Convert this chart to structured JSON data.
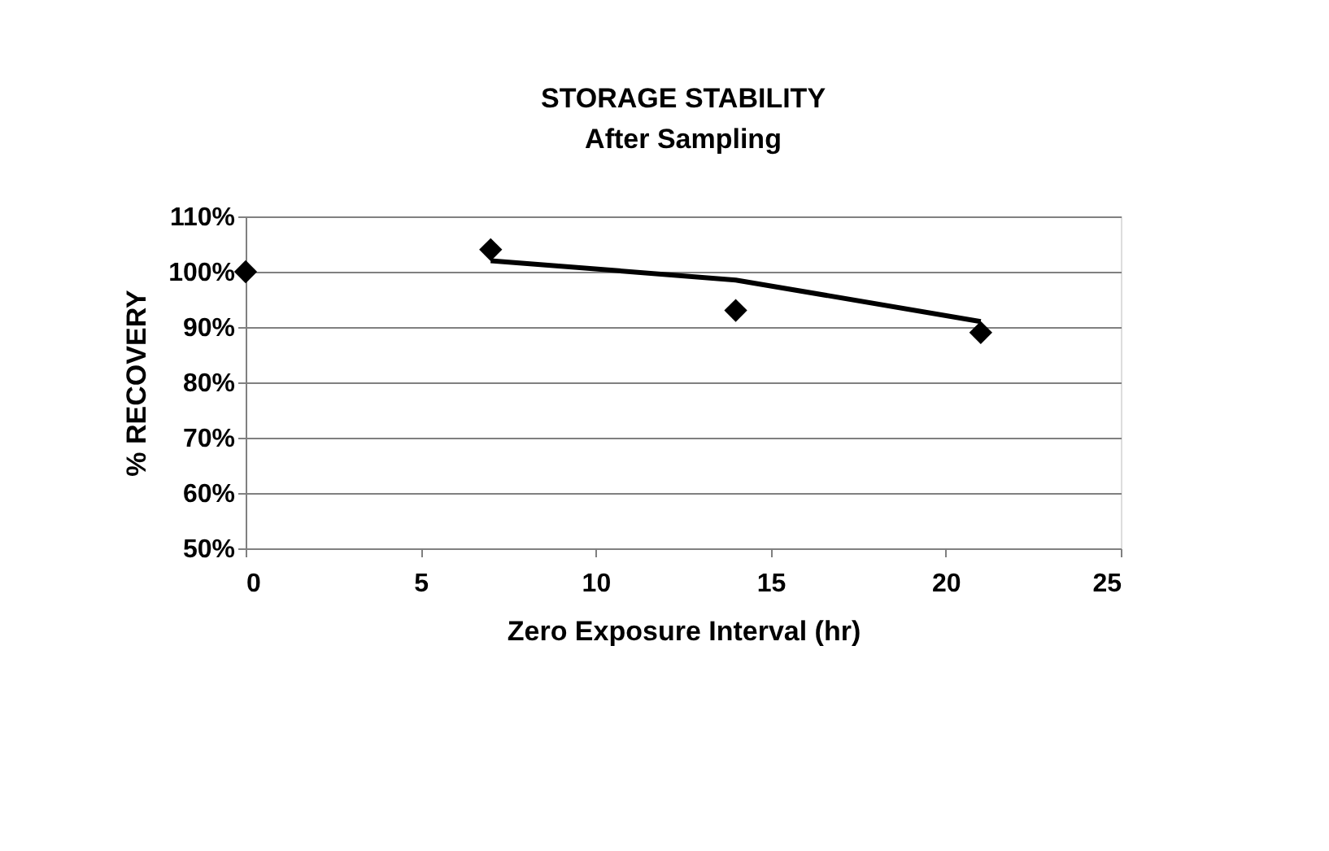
{
  "chart_data": {
    "type": "scatter",
    "title": "STORAGE STABILITY",
    "subtitle": "After Sampling",
    "xlabel": "Zero Exposure Interval (hr)",
    "ylabel": "% RECOVERY",
    "x": [
      0,
      7,
      14,
      21
    ],
    "series": [
      {
        "color": "#000000",
        "marker": "diamond",
        "values": [
          100,
          104,
          93,
          89
        ]
      },
      {
        "type": "line",
        "color": "#000000",
        "x": [
          7,
          14,
          21
        ],
        "values": [
          102,
          98.5,
          91
        ],
        "marker": "none",
        "line_style": "solid"
      }
    ],
    "xlim": [
      0,
      25
    ],
    "xticks": [
      0,
      5,
      10,
      15,
      20,
      25
    ],
    "ylim": [
      50,
      110
    ],
    "yticks": [
      {
        "value": 50,
        "label": "50%"
      },
      {
        "value": 60,
        "label": "60%"
      },
      {
        "value": 70,
        "label": "70%"
      },
      {
        "value": 80,
        "label": "80%"
      },
      {
        "value": 90,
        "label": "90%"
      },
      {
        "value": 100,
        "label": "100%"
      },
      {
        "value": 110,
        "label": "110%"
      }
    ],
    "grid": "y"
  }
}
